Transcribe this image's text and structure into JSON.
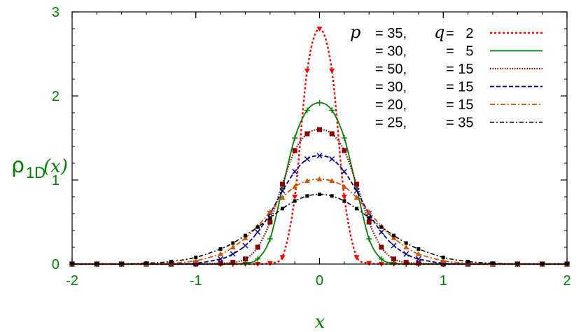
{
  "chart_data": {
    "type": "line",
    "xlabel": "x",
    "ylabel_main": "ρ",
    "ylabel_sub": "1D",
    "ylabel_arg": "(x)",
    "xlim": [
      -2,
      2
    ],
    "ylim": [
      0,
      3
    ],
    "x_ticks": [
      -2,
      -1,
      0,
      1,
      2
    ],
    "x_tick_labels": [
      "-2",
      "-1",
      "0",
      "1",
      "2"
    ],
    "y_ticks": [
      0,
      1,
      2,
      3
    ],
    "y_tick_labels": [
      "0",
      "1",
      "2",
      "3"
    ],
    "grid": false,
    "legend_position": "top-right",
    "legend_header": {
      "p": "p",
      "q": "q"
    },
    "x": [
      -2.0,
      -1.8,
      -1.6,
      -1.4,
      -1.2,
      -1.0,
      -0.8,
      -0.7,
      -0.6,
      -0.5,
      -0.4,
      -0.3,
      -0.2,
      -0.1,
      0.0,
      0.1,
      0.2,
      0.3,
      0.4,
      0.5,
      0.6,
      0.7,
      0.8,
      1.0,
      1.2,
      1.4,
      1.6,
      1.8,
      2.0
    ],
    "series": [
      {
        "p_label": "= 35,",
        "q_label": "=   2",
        "color": "#ff0000",
        "dash": "3,3",
        "width": 2.4,
        "marker": "triangle-down",
        "values": [
          0,
          0,
          0,
          0,
          0,
          0,
          0,
          0,
          0,
          0,
          0.01,
          0.08,
          0.8,
          2.3,
          2.8,
          2.3,
          0.8,
          0.08,
          0.01,
          0,
          0,
          0,
          0,
          0,
          0,
          0,
          0,
          0,
          0
        ]
      },
      {
        "p_label": "= 30,",
        "q_label": "=   5",
        "color": "#008000",
        "dash": "",
        "width": 1.8,
        "marker": "plus",
        "values": [
          0,
          0,
          0,
          0,
          0,
          0,
          0,
          0,
          0.01,
          0.06,
          0.3,
          0.9,
          1.5,
          1.83,
          1.92,
          1.83,
          1.5,
          0.9,
          0.3,
          0.06,
          0.01,
          0,
          0,
          0,
          0,
          0,
          0,
          0,
          0
        ]
      },
      {
        "p_label": "= 50,",
        "q_label": "= 15",
        "color": "#8b0000",
        "dash": "1.5,2",
        "width": 2.2,
        "marker": "square",
        "values": [
          0,
          0,
          0,
          0,
          0,
          0,
          0.01,
          0.02,
          0.06,
          0.2,
          0.5,
          0.95,
          1.35,
          1.55,
          1.6,
          1.55,
          1.35,
          0.95,
          0.5,
          0.2,
          0.06,
          0.02,
          0.01,
          0,
          0,
          0,
          0,
          0,
          0
        ]
      },
      {
        "p_label": "= 30,",
        "q_label": "= 15",
        "color": "#00008b",
        "dash": "6,3",
        "width": 1.8,
        "marker": "cross",
        "values": [
          0,
          0,
          0,
          0,
          0,
          0.01,
          0.06,
          0.12,
          0.22,
          0.38,
          0.6,
          0.87,
          1.1,
          1.25,
          1.29,
          1.25,
          1.1,
          0.87,
          0.6,
          0.38,
          0.22,
          0.12,
          0.06,
          0.01,
          0,
          0,
          0,
          0,
          0
        ]
      },
      {
        "p_label": "= 20,",
        "q_label": "= 15",
        "color": "#cc5500",
        "dash": "7,3,2,3",
        "width": 1.8,
        "marker": "triangle-up",
        "values": [
          0,
          0,
          0,
          0,
          0.01,
          0.04,
          0.12,
          0.2,
          0.31,
          0.45,
          0.62,
          0.79,
          0.92,
          0.99,
          1.01,
          0.99,
          0.92,
          0.79,
          0.62,
          0.45,
          0.31,
          0.2,
          0.12,
          0.04,
          0.01,
          0,
          0,
          0,
          0
        ]
      },
      {
        "p_label": "= 25,",
        "q_label": "= 35",
        "color": "#000000",
        "dash": "6,3,2,3",
        "width": 1.6,
        "marker": "small-square",
        "values": [
          0,
          0,
          0,
          0.01,
          0.03,
          0.08,
          0.18,
          0.25,
          0.34,
          0.44,
          0.55,
          0.66,
          0.75,
          0.81,
          0.83,
          0.81,
          0.75,
          0.66,
          0.55,
          0.44,
          0.34,
          0.25,
          0.18,
          0.08,
          0.03,
          0.01,
          0,
          0,
          0
        ]
      }
    ]
  }
}
